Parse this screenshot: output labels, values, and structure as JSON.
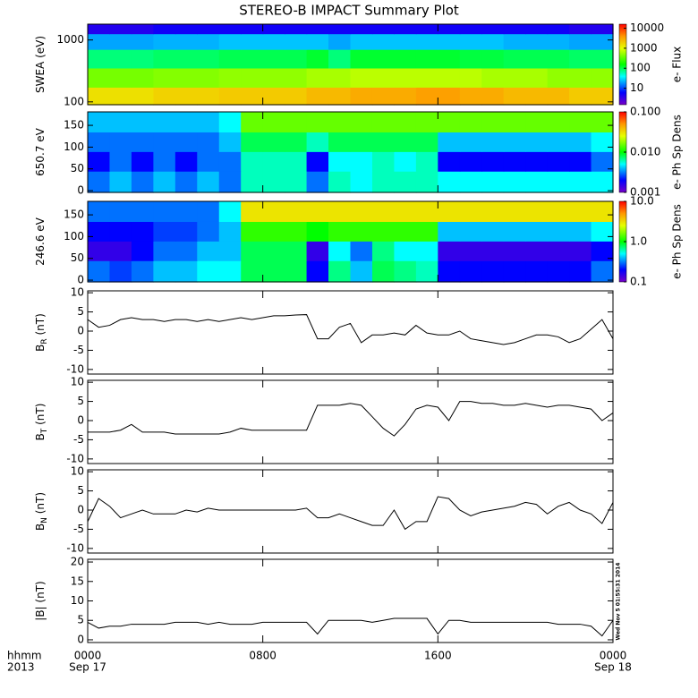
{
  "title": "STEREO-B IMPACT Summary Plot",
  "timestamp": "Wed Nov  5 01:55:31 2014",
  "xlim": [
    0,
    24
  ],
  "xticks": [
    {
      "value": 0,
      "label": "0000"
    },
    {
      "value": 8,
      "label": "0800"
    },
    {
      "value": 16,
      "label": "1600"
    },
    {
      "value": 24,
      "label": "0000"
    }
  ],
  "xaxis_labels": {
    "format": "hhmm",
    "year": "2013",
    "dates": [
      {
        "value": 0,
        "label": "Sep 17"
      },
      {
        "value": 24,
        "label": "Sep 18"
      }
    ]
  },
  "chart_data": [
    {
      "type": "heatmap",
      "ylabel": [
        "SWEA (eV)"
      ],
      "log_y": true,
      "ylim": [
        90,
        1800
      ],
      "yticks": [
        100,
        1000
      ],
      "x": [
        0.5,
        1.5,
        2.5,
        3.5,
        4.5,
        5.5,
        6.5,
        7.5,
        8.5,
        9.5,
        10.5,
        11.5,
        12.5,
        13.5,
        14.5,
        15.5,
        16.5,
        17.5,
        18.5,
        19.5,
        20.5,
        21.5,
        22.5,
        23.5
      ],
      "y": [
        120,
        250,
        500,
        1000,
        1600
      ],
      "values": [
        [
          1500,
          1500,
          1500,
          1800,
          1800,
          1800,
          2000,
          2000,
          2000,
          2000,
          2500,
          2500,
          3000,
          3000,
          3000,
          3500,
          3500,
          3000,
          3000,
          2500,
          2500,
          2500,
          2000,
          2000
        ],
        [
          400,
          400,
          400,
          450,
          450,
          450,
          500,
          500,
          500,
          500,
          600,
          600,
          700,
          700,
          700,
          700,
          700,
          700,
          600,
          600,
          600,
          500,
          500,
          500
        ],
        [
          80,
          80,
          80,
          90,
          90,
          90,
          100,
          100,
          100,
          100,
          120,
          80,
          120,
          120,
          120,
          120,
          120,
          110,
          110,
          100,
          100,
          100,
          90,
          90
        ],
        [
          20,
          20,
          20,
          22,
          22,
          22,
          25,
          25,
          25,
          25,
          25,
          20,
          25,
          25,
          25,
          25,
          25,
          25,
          25,
          22,
          22,
          22,
          20,
          20
        ],
        [
          4,
          4,
          4,
          5,
          5,
          5,
          5,
          5,
          5,
          5,
          5,
          5,
          5,
          5,
          5,
          5,
          5,
          5,
          5,
          5,
          5,
          5,
          4,
          4
        ]
      ],
      "colorbar": {
        "label": "e- Flux",
        "log": true,
        "zlim": [
          1.5,
          16000
        ],
        "ticks": [
          10,
          100,
          1000,
          10000
        ]
      }
    },
    {
      "type": "heatmap",
      "ylabel": [
        "650.7 eV"
      ],
      "log_y": false,
      "ylim": [
        -4,
        181
      ],
      "yticks": [
        0,
        50,
        100,
        150
      ],
      "x": [
        0.5,
        1.5,
        2.5,
        3.5,
        4.5,
        5.5,
        6.5,
        7.5,
        8.5,
        9.5,
        10.5,
        11.5,
        12.5,
        13.5,
        14.5,
        15.5,
        16.5,
        17.5,
        18.5,
        19.5,
        20.5,
        21.5,
        22.5,
        23.5
      ],
      "y": [
        22.5,
        67.5,
        112.5,
        157.5
      ],
      "values": [
        [
          0.003,
          0.004,
          0.003,
          0.004,
          0.003,
          0.004,
          0.003,
          0.006,
          0.006,
          0.006,
          0.003,
          0.006,
          0.005,
          0.006,
          0.006,
          0.006,
          0.005,
          0.005,
          0.005,
          0.005,
          0.005,
          0.005,
          0.005,
          0.005
        ],
        [
          0.002,
          0.003,
          0.002,
          0.003,
          0.002,
          0.003,
          0.003,
          0.006,
          0.006,
          0.006,
          0.002,
          0.005,
          0.005,
          0.006,
          0.005,
          0.006,
          0.002,
          0.002,
          0.002,
          0.002,
          0.002,
          0.002,
          0.002,
          0.003
        ],
        [
          0.003,
          0.003,
          0.003,
          0.003,
          0.003,
          0.003,
          0.004,
          0.008,
          0.008,
          0.008,
          0.006,
          0.008,
          0.008,
          0.008,
          0.008,
          0.008,
          0.004,
          0.004,
          0.004,
          0.004,
          0.004,
          0.004,
          0.004,
          0.005
        ],
        [
          0.004,
          0.004,
          0.004,
          0.004,
          0.004,
          0.004,
          0.005,
          0.015,
          0.015,
          0.015,
          0.015,
          0.015,
          0.015,
          0.015,
          0.015,
          0.015,
          0.015,
          0.015,
          0.015,
          0.015,
          0.015,
          0.015,
          0.015,
          0.015
        ]
      ],
      "colorbar": {
        "label": "e- Ph Sp Dens",
        "log": true,
        "zlim": [
          0.001,
          0.1
        ],
        "ticks": [
          0.001,
          {
            "value": 0.01,
            "label": "0.010"
          },
          {
            "value": 0.1,
            "label": "0.100"
          }
        ]
      }
    },
    {
      "type": "heatmap",
      "ylabel": [
        "246.6 eV"
      ],
      "log_y": false,
      "ylim": [
        -4,
        181
      ],
      "yticks": [
        0,
        50,
        100,
        150
      ],
      "x": [
        0.5,
        1.5,
        2.5,
        3.5,
        4.5,
        5.5,
        6.5,
        7.5,
        8.5,
        9.5,
        10.5,
        11.5,
        12.5,
        13.5,
        14.5,
        15.5,
        16.5,
        17.5,
        18.5,
        19.5,
        20.5,
        21.5,
        22.5,
        23.5
      ],
      "y": [
        22.5,
        67.5,
        112.5,
        157.5
      ],
      "values": [
        [
          0.3,
          0.25,
          0.3,
          0.4,
          0.4,
          0.5,
          0.5,
          0.8,
          0.8,
          0.8,
          0.2,
          0.7,
          0.4,
          0.8,
          0.7,
          0.6,
          0.2,
          0.2,
          0.2,
          0.2,
          0.2,
          0.2,
          0.2,
          0.3
        ],
        [
          0.15,
          0.15,
          0.2,
          0.3,
          0.3,
          0.4,
          0.4,
          0.8,
          0.8,
          0.8,
          0.15,
          0.5,
          0.3,
          0.7,
          0.5,
          0.5,
          0.15,
          0.15,
          0.15,
          0.15,
          0.15,
          0.15,
          0.15,
          0.2
        ],
        [
          0.2,
          0.2,
          0.2,
          0.25,
          0.25,
          0.3,
          0.4,
          1.2,
          1.2,
          1.2,
          1.0,
          1.2,
          1.2,
          1.2,
          1.2,
          1.2,
          0.4,
          0.4,
          0.4,
          0.4,
          0.4,
          0.4,
          0.4,
          0.5
        ],
        [
          0.3,
          0.3,
          0.3,
          0.3,
          0.3,
          0.3,
          0.5,
          3,
          3,
          3,
          3,
          3,
          3,
          3,
          3,
          3,
          3,
          3,
          3,
          3,
          3,
          3,
          3,
          3
        ]
      ],
      "colorbar": {
        "label": "e- Ph Sp Dens",
        "log": true,
        "zlim": [
          0.1,
          10
        ],
        "ticks": [
          0.1,
          {
            "value": 1,
            "label": "1.0"
          },
          {
            "value": 10,
            "label": "10.0"
          }
        ]
      }
    },
    {
      "type": "line",
      "ylabel": [
        "B",
        "R",
        " (nT)"
      ],
      "ylim": [
        -11.2,
        10.5
      ],
      "yticks": [
        -10,
        -5,
        0,
        5,
        10
      ],
      "color": "#000000",
      "x": [
        0,
        0.5,
        1,
        1.5,
        2,
        2.5,
        3,
        3.5,
        4,
        4.5,
        5,
        5.5,
        6,
        6.5,
        7,
        7.5,
        8,
        8.5,
        9,
        9.5,
        10,
        10.5,
        11,
        11.5,
        12,
        12.5,
        13,
        13.5,
        14,
        14.5,
        15,
        15.5,
        16,
        16.5,
        17,
        17.5,
        18,
        18.5,
        19,
        19.5,
        20,
        20.5,
        21,
        21.5,
        22,
        22.5,
        23,
        23.5,
        24
      ],
      "values": [
        3,
        1,
        1.5,
        3,
        3.5,
        3,
        3,
        2.5,
        3,
        3,
        2.5,
        3,
        2.5,
        3,
        3.5,
        3,
        3.5,
        4,
        4,
        4.2,
        4.3,
        -2,
        -2,
        1,
        2,
        -3,
        -1,
        -1,
        -0.5,
        -1,
        1.5,
        -0.5,
        -1,
        -1,
        0,
        -2,
        -2.5,
        -3,
        -3.5,
        -3,
        -2,
        -1,
        -1,
        -1.5,
        -3,
        -2,
        0.5,
        3,
        -2
      ]
    },
    {
      "type": "line",
      "ylabel": [
        "B",
        "T",
        " (nT)"
      ],
      "ylim": [
        -11.2,
        10.5
      ],
      "yticks": [
        -10,
        -5,
        0,
        5,
        10
      ],
      "color": "#000000",
      "x": [
        0,
        0.5,
        1,
        1.5,
        2,
        2.5,
        3,
        3.5,
        4,
        4.5,
        5,
        5.5,
        6,
        6.5,
        7,
        7.5,
        8,
        8.5,
        9,
        9.5,
        10,
        10.5,
        11,
        11.5,
        12,
        12.5,
        13,
        13.5,
        14,
        14.5,
        15,
        15.5,
        16,
        16.5,
        17,
        17.5,
        18,
        18.5,
        19,
        19.5,
        20,
        20.5,
        21,
        21.5,
        22,
        22.5,
        23,
        23.5,
        24
      ],
      "values": [
        -3,
        -3,
        -3,
        -2.5,
        -1,
        -3,
        -3,
        -3,
        -3.5,
        -3.5,
        -3.5,
        -3.5,
        -3.5,
        -3,
        -2,
        -2.5,
        -2.5,
        -2.5,
        -2.5,
        -2.5,
        -2.5,
        4,
        4,
        4,
        4.5,
        4,
        1,
        -2,
        -4,
        -1,
        3,
        4,
        3.5,
        0,
        5,
        5,
        4.5,
        4.5,
        4,
        4,
        4.5,
        4,
        3.5,
        4,
        4,
        3.5,
        3,
        0,
        2
      ]
    },
    {
      "type": "line",
      "ylabel": [
        "B",
        "N",
        " (nT)"
      ],
      "ylim": [
        -11.2,
        10.5
      ],
      "yticks": [
        -10,
        -5,
        0,
        5,
        10
      ],
      "color": "#000000",
      "x": [
        0,
        0.5,
        1,
        1.5,
        2,
        2.5,
        3,
        3.5,
        4,
        4.5,
        5,
        5.5,
        6,
        6.5,
        7,
        7.5,
        8,
        8.5,
        9,
        9.5,
        10,
        10.5,
        11,
        11.5,
        12,
        12.5,
        13,
        13.5,
        14,
        14.5,
        15,
        15.5,
        16,
        16.5,
        17,
        17.5,
        18,
        18.5,
        19,
        19.5,
        20,
        20.5,
        21,
        21.5,
        22,
        22.5,
        23,
        23.5,
        24
      ],
      "values": [
        -3,
        3,
        1,
        -2,
        -1,
        0,
        -1,
        -1,
        -1,
        0,
        -0.5,
        0.5,
        0,
        0,
        0,
        0,
        0,
        0,
        0,
        0,
        0.5,
        -2,
        -2,
        -1,
        -2,
        -3,
        -4,
        -4,
        0,
        -5,
        -3,
        -3,
        3.5,
        3,
        0,
        -1.5,
        -0.5,
        0,
        0.5,
        1,
        2,
        1.5,
        -1,
        1,
        2,
        0,
        -1,
        -3.5,
        2
      ]
    },
    {
      "type": "line",
      "ylabel": [
        "|B| (nT)"
      ],
      "ylim": [
        -0.7,
        20.7
      ],
      "yticks": [
        0,
        5,
        10,
        15,
        20
      ],
      "color": "#000000",
      "x": [
        0,
        0.5,
        1,
        1.5,
        2,
        2.5,
        3,
        3.5,
        4,
        4.5,
        5,
        5.5,
        6,
        6.5,
        7,
        7.5,
        8,
        8.5,
        9,
        9.5,
        10,
        10.5,
        11,
        11.5,
        12,
        12.5,
        13,
        13.5,
        14,
        14.5,
        15,
        15.5,
        16,
        16.5,
        17,
        17.5,
        18,
        18.5,
        19,
        19.5,
        20,
        20.5,
        21,
        21.5,
        22,
        22.5,
        23,
        23.5,
        24
      ],
      "values": [
        4.5,
        3,
        3.5,
        3.5,
        4,
        4,
        4,
        4,
        4.5,
        4.5,
        4.5,
        4,
        4.5,
        4,
        4,
        4,
        4.5,
        4.5,
        4.5,
        4.5,
        4.5,
        1.5,
        5,
        5,
        5,
        5,
        4.5,
        5,
        5.5,
        5.5,
        5.5,
        5.5,
        1.5,
        5,
        5,
        4.5,
        4.5,
        4.5,
        4.5,
        4.5,
        4.5,
        4.5,
        4.5,
        4,
        4,
        4,
        3.5,
        1,
        5
      ]
    }
  ]
}
